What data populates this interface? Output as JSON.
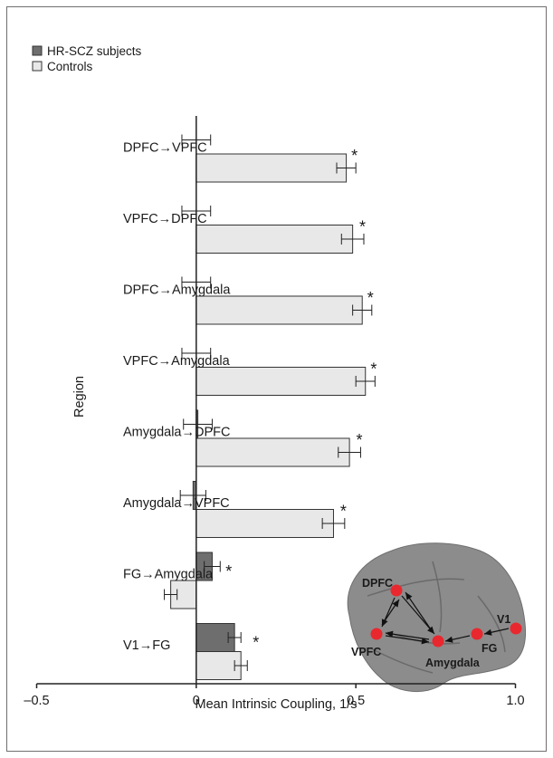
{
  "chart_data": {
    "type": "bar",
    "orientation": "horizontal",
    "xlabel": "Mean Intrinsic Coupling, 1/s",
    "ylabel": "Region",
    "xlim": [
      -0.5,
      1.0
    ],
    "xticks": [
      "-0.5",
      "0",
      "0.5",
      "1.0"
    ],
    "xtick_values": [
      -0.5,
      0,
      0.5,
      1.0
    ],
    "legend_position": "top-left",
    "categories": [
      "DPFC→VPFC",
      "VPFC→DPFC",
      "DPFC→Amygdala",
      "VPFC→Amygdala",
      "Amygdala→DPFC",
      "Amygdala→VPFC",
      "FG→Amygdala",
      "V1→FG"
    ],
    "series": [
      {
        "name": "HR-SCZ subjects",
        "color": "#6e6e6e",
        "values": [
          0.0,
          0.0,
          0.0,
          0.0,
          0.005,
          -0.01,
          0.05,
          0.12
        ],
        "errors": [
          0.045,
          0.045,
          0.045,
          0.045,
          0.045,
          0.04,
          0.025,
          0.02
        ]
      },
      {
        "name": "Controls",
        "color": "#e8e8e8",
        "values": [
          0.47,
          0.49,
          0.52,
          0.53,
          0.48,
          0.43,
          -0.08,
          0.14
        ],
        "errors": [
          0.03,
          0.035,
          0.03,
          0.03,
          0.035,
          0.035,
          0.02,
          0.02
        ]
      }
    ],
    "significance": [
      {
        "category": "DPFC→VPFC",
        "marker": "*"
      },
      {
        "category": "VPFC→DPFC",
        "marker": "*"
      },
      {
        "category": "DPFC→Amygdala",
        "marker": "*"
      },
      {
        "category": "VPFC→Amygdala",
        "marker": "*"
      },
      {
        "category": "Amygdala→DPFC",
        "marker": "*"
      },
      {
        "category": "Amygdala→VPFC",
        "marker": "*"
      },
      {
        "category": "FG→Amygdala",
        "marker": "*"
      },
      {
        "category": "V1→FG",
        "marker": "*"
      }
    ]
  },
  "brain_inset": {
    "labels": [
      "DPFC",
      "VPFC",
      "Amygdala",
      "FG",
      "V1"
    ],
    "node_color": "#e8282e"
  }
}
